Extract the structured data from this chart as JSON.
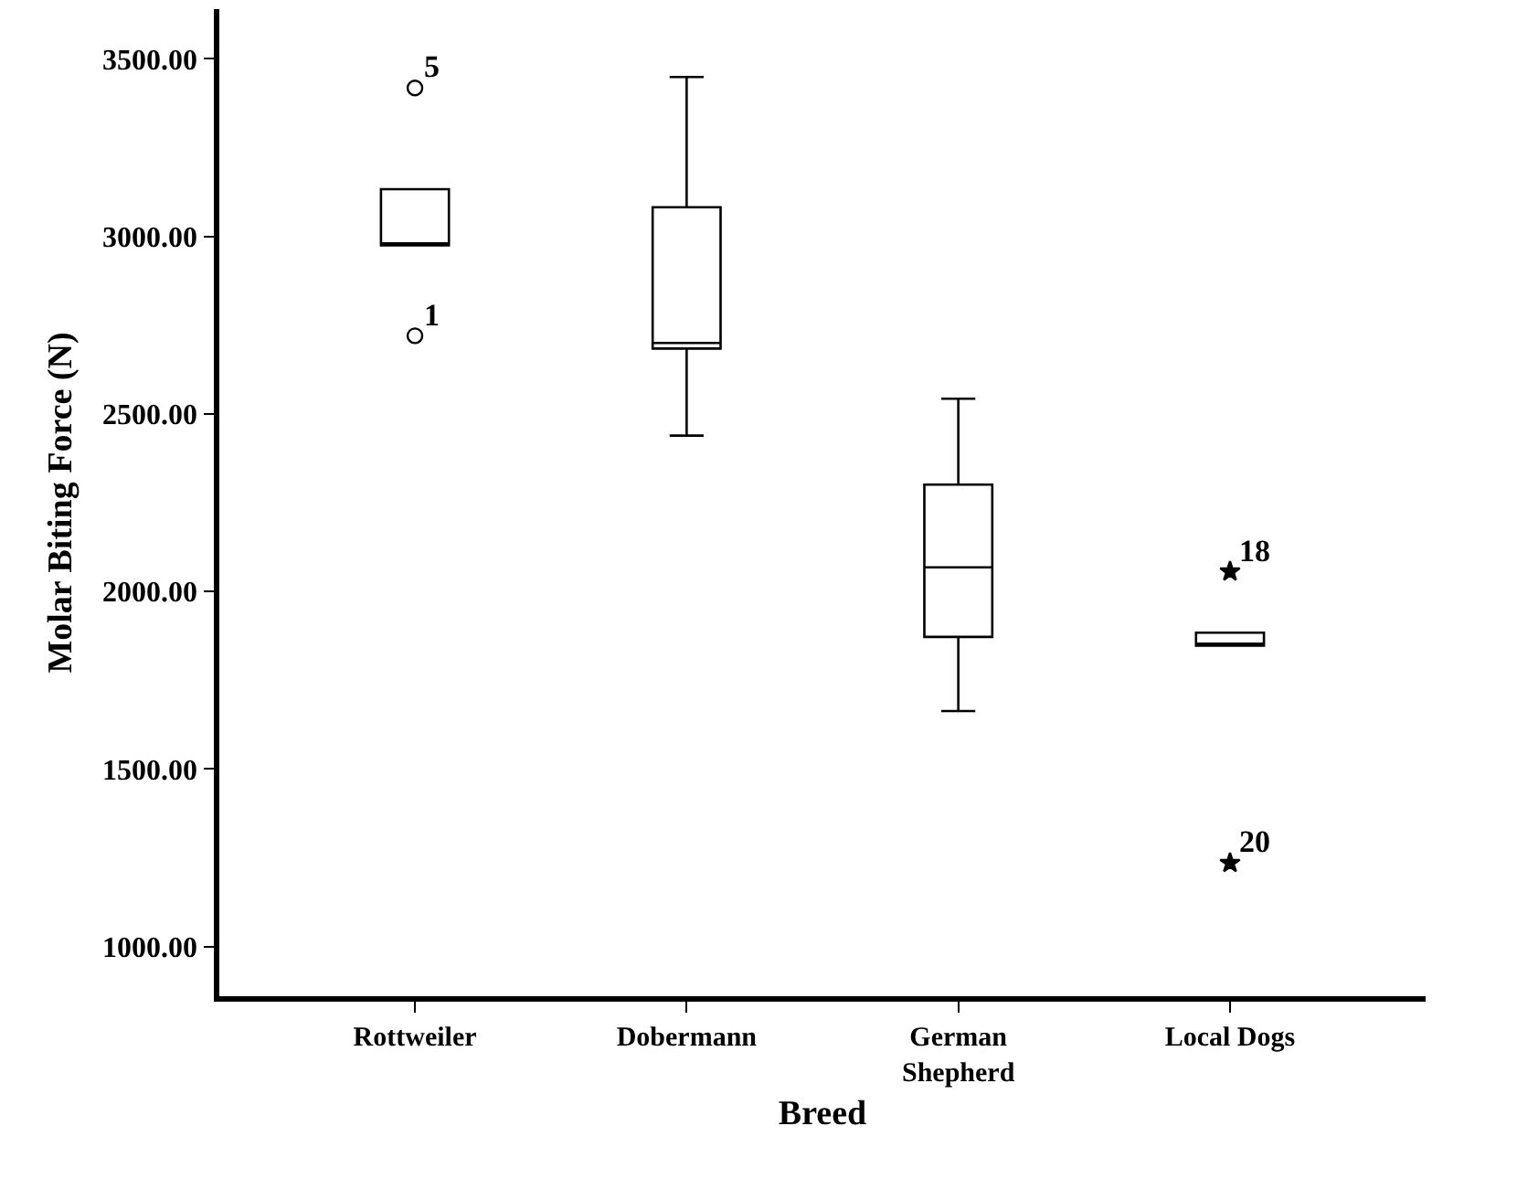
{
  "chart_data": {
    "type": "box",
    "xlabel": "Breed",
    "ylabel": "Molar Biting Force (N)",
    "categories": [
      "Rottweiler",
      "Dobermann",
      "German Shepherd",
      "Local Dogs"
    ],
    "ylim": [
      860,
      3640
    ],
    "yticks": [
      {
        "value": 1000,
        "label": "1000.00"
      },
      {
        "value": 1500,
        "label": "1500.00"
      },
      {
        "value": 2000,
        "label": "2000.00"
      },
      {
        "value": 2500,
        "label": "2500.00"
      },
      {
        "value": 3000,
        "label": "3000.00"
      },
      {
        "value": 3500,
        "label": "3500.00"
      }
    ],
    "legend": false,
    "series": [
      {
        "color": "#000000",
        "boxes": [
          {
            "low": 2975,
            "q1": 2975,
            "median": 2975,
            "q3": 3133,
            "high": 3133
          },
          {
            "low": 2439,
            "q1": 2684,
            "median": 2700,
            "q3": 3082,
            "high": 3449
          },
          {
            "low": 1663,
            "q1": 1872,
            "median": 2068,
            "q3": 2301,
            "high": 2543
          },
          {
            "low": 1847,
            "q1": 1847,
            "median": 1853,
            "q3": 1884,
            "high": 1884
          }
        ]
      },
      {
        "type": "scatter",
        "marker": "circle",
        "color": "#000000",
        "x": [
          "Rottweiler",
          "Rottweiler"
        ],
        "values": [
          3418,
          2720
        ]
      },
      {
        "type": "scatter",
        "marker": "star",
        "color": "#000000",
        "x": [
          "Local Dogs",
          "Local Dogs"
        ],
        "values": [
          2056,
          1235
        ]
      }
    ],
    "annotations": [
      {
        "text": "5",
        "x": "Rottweiler",
        "y": 3418
      },
      {
        "text": "1",
        "x": "Rottweiler",
        "y": 2720
      },
      {
        "text": "18",
        "x": "Local Dogs",
        "y": 2056
      },
      {
        "text": "20",
        "x": "Local Dogs",
        "y": 1235
      }
    ]
  }
}
